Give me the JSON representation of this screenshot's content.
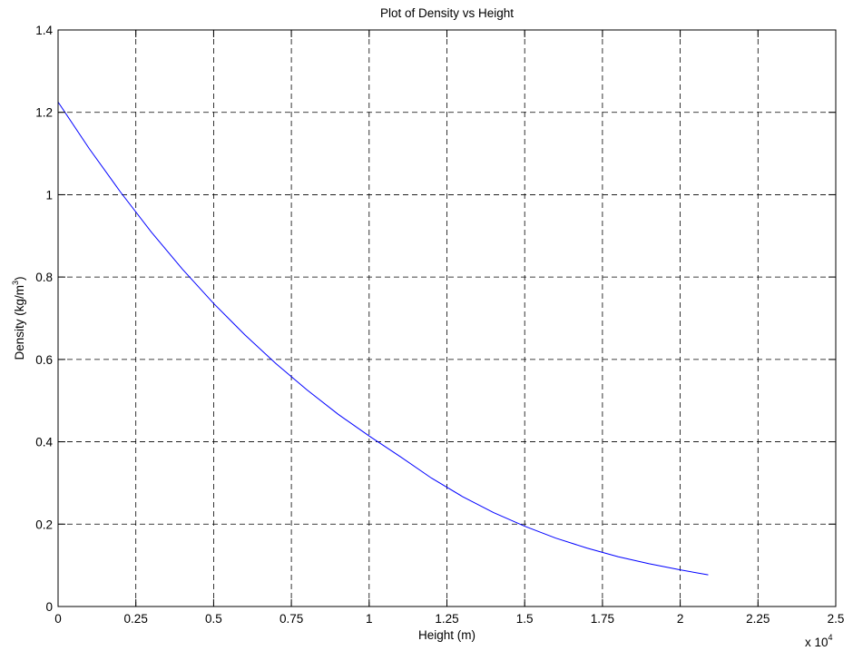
{
  "chart_data": {
    "type": "line",
    "title": "Plot of Density vs Height",
    "xlabel": "Height (m)",
    "ylabel": "Density (kg/m³)",
    "ylabel_parts": {
      "before": "Density (kg/m",
      "sup": "3",
      "after": ")"
    },
    "x_multiplier": {
      "base": "x 10",
      "exp": "4"
    },
    "xlim": [
      0,
      25000
    ],
    "ylim": [
      0,
      1.4
    ],
    "xticks": [
      0,
      2500,
      5000,
      7500,
      10000,
      12500,
      15000,
      17500,
      20000,
      22500,
      25000
    ],
    "xtick_labels": [
      "0",
      "0.25",
      "0.5",
      "0.75",
      "1",
      "1.25",
      "1.5",
      "1.75",
      "2",
      "2.25",
      "2.5"
    ],
    "yticks": [
      0,
      0.2,
      0.4,
      0.6,
      0.8,
      1.0,
      1.2,
      1.4
    ],
    "ytick_labels": [
      "0",
      "0.2",
      "0.4",
      "0.6",
      "0.8",
      "1",
      "1.2",
      "1.4"
    ],
    "grid": true,
    "series": [
      {
        "color": "#0000ff",
        "x": [
          0,
          1000,
          2000,
          3000,
          4000,
          5000,
          6000,
          7000,
          8000,
          9000,
          10000,
          11000,
          12000,
          13000,
          14000,
          15000,
          16000,
          17000,
          18000,
          19000,
          20000,
          20900
        ],
        "y": [
          1.225,
          1.112,
          1.007,
          0.909,
          0.819,
          0.736,
          0.66,
          0.59,
          0.526,
          0.467,
          0.414,
          0.364,
          0.312,
          0.267,
          0.228,
          0.195,
          0.166,
          0.142,
          0.121,
          0.104,
          0.089,
          0.077
        ]
      }
    ]
  }
}
